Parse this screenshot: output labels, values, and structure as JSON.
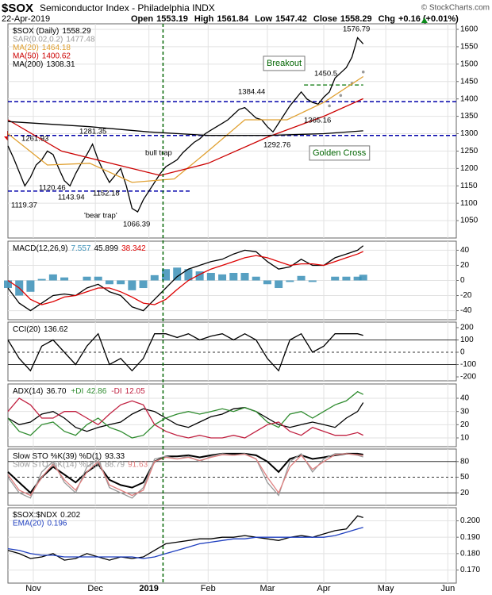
{
  "header": {
    "symbol": "$SOX",
    "name": "Semiconductor Index - Philadelphia INDX",
    "credit": "© StockCharts.com",
    "date": "22-Apr-2019",
    "quote": [
      {
        "label": "Open",
        "value": 1553.19
      },
      {
        "label": "High",
        "value": 1561.84
      },
      {
        "label": "Low",
        "value": 1547.42
      },
      {
        "label": "Close",
        "value": 1558.29
      }
    ],
    "change_label": "Chg",
    "change": "+0.16 (+0.01%)"
  },
  "chart_data": [
    {
      "type": "line",
      "grid": true,
      "legend": "column",
      "ylim": [
        1000,
        1616
      ],
      "yticks": [
        1050,
        1100,
        1150,
        1200,
        1250,
        1300,
        1350,
        1400,
        1450,
        1500,
        1550,
        1600
      ],
      "x": [
        -9,
        -7,
        -5,
        -3,
        -1,
        1,
        3,
        5,
        7,
        9,
        11,
        13,
        15,
        17,
        19,
        21,
        23,
        25,
        27,
        29,
        31,
        33,
        35,
        37,
        39,
        41,
        43,
        45,
        47,
        49,
        51,
        53,
        55,
        57,
        59,
        61,
        63,
        65,
        67,
        69,
        71,
        73,
        75,
        77,
        79,
        81,
        83,
        85,
        87,
        89,
        91,
        93,
        95,
        97,
        99,
        101,
        103,
        105,
        107,
        109,
        111,
        113,
        115,
        117
      ],
      "series": [
        {
          "name": "$SOX (Daily)",
          "color": "#000000",
          "values": [
            1265,
            1230,
            1190,
            1150,
            1175,
            1210,
            1225,
            1250,
            1240,
            1200,
            1165,
            1150,
            1185,
            1215,
            1240,
            1270,
            1225,
            1190,
            1160,
            1180,
            1200,
            1150,
            1085,
            1075,
            1110,
            1135,
            1160,
            1185,
            1205,
            1215,
            1225,
            1245,
            1260,
            1275,
            1285,
            1300,
            1310,
            1320,
            1330,
            1340,
            1355,
            1370,
            1375,
            1360,
            1345,
            1340,
            1320,
            1305,
            1330,
            1355,
            1380,
            1400,
            1420,
            1400,
            1390,
            1385,
            1405,
            1420,
            1460,
            1475,
            1490,
            1520,
            1576,
            1558.29
          ]
        },
        {
          "name": "SAR(0.02,0.2)",
          "color": "#999999",
          "style": "dots",
          "x": [
            105,
            109,
            113,
            117
          ],
          "values": [
            1380,
            1410,
            1445,
            1477.48
          ]
        },
        {
          "name": "MA(20)",
          "color": "#e0a030",
          "x": [
            -9,
            5,
            20,
            35,
            50,
            62,
            75,
            90,
            103,
            117
          ],
          "values": [
            1300,
            1210,
            1215,
            1160,
            1170,
            1250,
            1340,
            1340,
            1390,
            1464.18
          ]
        },
        {
          "name": "MA(50)",
          "color": "#cc0000",
          "x": [
            -9,
            10,
            30,
            45,
            62,
            83,
            103,
            117
          ],
          "values": [
            1340,
            1250,
            1210,
            1180,
            1215,
            1290,
            1350,
            1400.62
          ]
        },
        {
          "name": "MA(200)",
          "color": "#000000",
          "x": [
            -9,
            20,
            41,
            62,
            83,
            103,
            117
          ],
          "values": [
            1335,
            1320,
            1305,
            1295,
            1295,
            1300,
            1308.31
          ]
        }
      ],
      "levels": [
        {
          "value": 1392,
          "color": "#0000aa"
        },
        {
          "value": 1295,
          "color": "#0000aa"
        },
        {
          "value": 1135,
          "color": "#0000aa",
          "x_end": 56
        },
        {
          "value": 1440,
          "color": "#2e8b2e",
          "x_start": 96,
          "x_end": 117
        }
      ],
      "annotations": [
        "1576.79",
        "Breakout",
        "1450.5",
        "1384.44",
        "1365.16",
        "1281.35",
        "1261.93",
        "1292.76",
        "Golden Cross",
        "bull trap",
        "1120.46",
        "1152.18",
        "1143.94",
        "1119.37",
        "'bear trap'",
        "1066.39"
      ]
    },
    {
      "type": "line",
      "grid": true,
      "legend": "row",
      "label": "MACD(12,26,9)",
      "ylim": [
        -52,
        52
      ],
      "yticks": [
        40,
        20,
        0,
        -20,
        -40
      ],
      "x": [
        -9,
        -5,
        -1,
        3,
        7,
        11,
        15,
        19,
        23,
        27,
        31,
        35,
        39,
        43,
        47,
        51,
        55,
        59,
        63,
        67,
        71,
        75,
        79,
        83,
        87,
        91,
        95,
        99,
        103,
        107,
        111,
        115,
        117
      ],
      "series": [
        {
          "color": "#3a8fb7",
          "style": "bar",
          "values": [
            -10,
            -20,
            -15,
            2,
            8,
            4,
            0,
            5,
            5,
            -5,
            -5,
            -13,
            -10,
            7,
            15,
            17,
            15,
            12,
            10,
            8,
            10,
            10,
            5,
            -5,
            -10,
            -2,
            6,
            -2,
            0,
            5,
            5,
            5,
            7.557
          ]
        },
        {
          "color": "#000000",
          "values": [
            -10,
            -30,
            -40,
            -30,
            -20,
            -18,
            -20,
            -10,
            -5,
            -15,
            -20,
            -35,
            -40,
            -25,
            -10,
            5,
            15,
            20,
            25,
            28,
            35,
            40,
            38,
            25,
            15,
            18,
            28,
            20,
            20,
            30,
            35,
            40,
            45.899
          ]
        },
        {
          "color": "#dd0000",
          "values": [
            0,
            -10,
            -25,
            -32,
            -28,
            -22,
            -20,
            -15,
            -10,
            -10,
            -15,
            -22,
            -30,
            -32,
            -25,
            -12,
            0,
            8,
            15,
            20,
            25,
            30,
            33,
            30,
            25,
            20,
            22,
            22,
            20,
            25,
            30,
            35,
            38.342
          ]
        }
      ]
    },
    {
      "type": "line",
      "grid": false,
      "legend": "row",
      "ylim": [
        -232,
        245
      ],
      "yticks": [
        200,
        100,
        0,
        -100,
        -200
      ],
      "refs": [
        100,
        0,
        -100
      ],
      "ref_style": [
        "solid",
        "dashed",
        "solid"
      ],
      "x": [
        -9,
        -5,
        -1,
        3,
        7,
        11,
        15,
        19,
        23,
        27,
        31,
        35,
        39,
        43,
        47,
        51,
        55,
        59,
        63,
        67,
        71,
        75,
        79,
        83,
        87,
        91,
        95,
        99,
        103,
        107,
        111,
        115,
        117
      ],
      "series": [
        {
          "name": "CCI(20)",
          "color": "#000000",
          "values": [
            100,
            -50,
            -150,
            50,
            100,
            0,
            -100,
            50,
            150,
            -100,
            -50,
            -150,
            -50,
            150,
            150,
            120,
            150,
            100,
            130,
            150,
            100,
            150,
            100,
            -50,
            -150,
            100,
            150,
            0,
            50,
            150,
            150,
            150,
            136.62
          ]
        }
      ]
    },
    {
      "type": "line",
      "grid": true,
      "legend": "row",
      "ylim": [
        3.4,
        50.8
      ],
      "yticks": [
        40,
        30,
        20,
        10
      ],
      "x": [
        -9,
        -5,
        -1,
        3,
        7,
        11,
        15,
        19,
        23,
        27,
        31,
        35,
        39,
        43,
        47,
        51,
        55,
        59,
        63,
        67,
        71,
        75,
        79,
        83,
        87,
        91,
        95,
        99,
        103,
        107,
        111,
        115,
        117
      ],
      "series": [
        {
          "name": "ADX(14)",
          "color": "#000000",
          "values": [
            25,
            20,
            22,
            28,
            30,
            25,
            18,
            15,
            18,
            20,
            22,
            28,
            32,
            30,
            25,
            20,
            18,
            22,
            26,
            28,
            32,
            33,
            30,
            25,
            20,
            18,
            20,
            22,
            20,
            18,
            25,
            30,
            36.7
          ],
          "value_labels": [
            null,
            null,
            null,
            null,
            null,
            null,
            null,
            null,
            null,
            null,
            null,
            null,
            null,
            null,
            null,
            null,
            null,
            null,
            null,
            null,
            null,
            null,
            null,
            null,
            null,
            null,
            null,
            null,
            null,
            null,
            null,
            null,
            "36.70"
          ]
        },
        {
          "name": "+DI",
          "color": "#2e8b2e",
          "values": [
            25,
            15,
            12,
            20,
            22,
            15,
            12,
            20,
            25,
            18,
            15,
            10,
            12,
            20,
            25,
            28,
            30,
            28,
            30,
            32,
            30,
            33,
            30,
            22,
            18,
            28,
            30,
            25,
            30,
            35,
            38,
            45,
            42.86
          ]
        },
        {
          "name": "-DI",
          "color": "#c02040",
          "values": [
            30,
            40,
            35,
            25,
            25,
            30,
            30,
            25,
            20,
            28,
            35,
            38,
            35,
            20,
            15,
            12,
            10,
            12,
            10,
            10,
            12,
            10,
            15,
            20,
            22,
            15,
            12,
            18,
            15,
            12,
            12,
            14,
            12.05
          ]
        }
      ]
    },
    {
      "type": "line",
      "grid": false,
      "legend": "column",
      "ylim": [
        -4,
        104
      ],
      "yticks": [
        80,
        50,
        20
      ],
      "refs": [
        80,
        50,
        20
      ],
      "ref_style": [
        "solid",
        "dashed",
        "solid"
      ],
      "x": [
        -9,
        -5,
        -1,
        3,
        7,
        11,
        15,
        19,
        23,
        27,
        31,
        35,
        39,
        43,
        47,
        51,
        55,
        59,
        63,
        67,
        71,
        75,
        79,
        83,
        87,
        91,
        95,
        99,
        103,
        107,
        111,
        115,
        117
      ],
      "series": [
        {
          "name": "Slow STO %K(39) %D(1)",
          "color": "#000000",
          "width": 2,
          "values": [
            60,
            40,
            20,
            50,
            70,
            55,
            40,
            60,
            75,
            45,
            35,
            30,
            40,
            80,
            90,
            90,
            92,
            88,
            92,
            95,
            95,
            95,
            92,
            80,
            60,
            85,
            92,
            85,
            88,
            92,
            95,
            95,
            93.33
          ]
        },
        {
          "name": "Slow STO %K(14) %D(3)",
          "color": "#999999",
          "values": [
            50,
            20,
            10,
            60,
            80,
            40,
            20,
            70,
            85,
            30,
            20,
            10,
            30,
            85,
            90,
            85,
            90,
            80,
            90,
            95,
            92,
            95,
            85,
            40,
            15,
            80,
            95,
            60,
            85,
            95,
            95,
            92,
            88.79
          ]
        },
        {
          "color": "#e08080",
          "values": [
            55,
            25,
            15,
            50,
            75,
            45,
            25,
            60,
            80,
            35,
            25,
            15,
            25,
            80,
            88,
            85,
            88,
            82,
            88,
            93,
            92,
            94,
            85,
            50,
            20,
            70,
            92,
            65,
            80,
            93,
            95,
            93,
            91.63
          ]
        }
      ]
    },
    {
      "type": "line",
      "grid": true,
      "legend": "column",
      "ylim": [
        0.162,
        0.208
      ],
      "yticks": [
        {
          "value": 0.2,
          "label": "0.200"
        },
        {
          "value": 0.19,
          "label": "0.190"
        },
        {
          "value": 0.18,
          "label": "0.180"
        },
        {
          "value": 0.17,
          "label": "0.170"
        }
      ],
      "x": [
        -9,
        -5,
        -1,
        3,
        7,
        11,
        15,
        19,
        23,
        27,
        31,
        35,
        39,
        43,
        47,
        51,
        55,
        59,
        63,
        67,
        71,
        75,
        79,
        83,
        87,
        91,
        95,
        99,
        103,
        107,
        111,
        115,
        117
      ],
      "series": [
        {
          "name": "$SOX:$NDX",
          "color": "#000000",
          "values": [
            0.182,
            0.18,
            0.177,
            0.178,
            0.18,
            0.176,
            0.177,
            0.18,
            0.178,
            0.176,
            0.178,
            0.177,
            0.178,
            0.182,
            0.186,
            0.187,
            0.188,
            0.189,
            0.189,
            0.19,
            0.19,
            0.191,
            0.19,
            0.189,
            0.188,
            0.19,
            0.191,
            0.19,
            0.192,
            0.194,
            0.195,
            0.203,
            0.202
          ]
        },
        {
          "name": "EMA(20)",
          "color": "#1f3fbf",
          "values": [
            0.183,
            0.182,
            0.18,
            0.179,
            0.179,
            0.178,
            0.178,
            0.178,
            0.178,
            0.178,
            0.178,
            0.178,
            0.177,
            0.178,
            0.18,
            0.182,
            0.184,
            0.186,
            0.187,
            0.188,
            0.189,
            0.189,
            0.19,
            0.19,
            0.19,
            0.19,
            0.19,
            0.19,
            0.19,
            0.191,
            0.193,
            0.195,
            0.196
          ]
        }
      ],
      "xlim": [
        -9,
        150
      ],
      "xticks": [
        {
          "value": 0,
          "label": "Nov"
        },
        {
          "value": 22,
          "label": "Dec"
        },
        {
          "value": 41,
          "label": "2019"
        },
        {
          "value": 62,
          "label": "Feb"
        },
        {
          "value": 83,
          "label": "Mar"
        },
        {
          "value": 103,
          "label": "Apr"
        },
        {
          "value": 125,
          "label": "May"
        },
        {
          "value": 147,
          "label": "Jun"
        }
      ],
      "vline": 46
    }
  ]
}
